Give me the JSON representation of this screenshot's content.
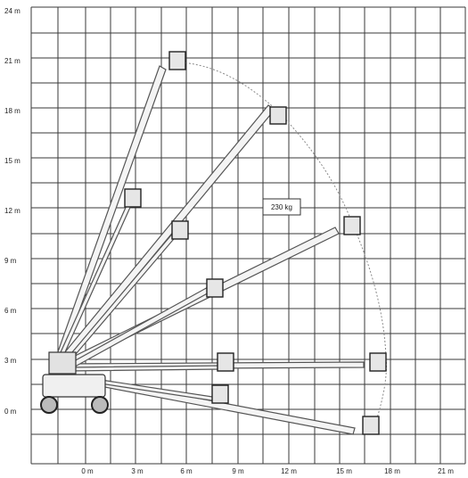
{
  "diagram": {
    "y_axis_labels": [
      "24 m",
      "21 m",
      "18 m",
      "15 m",
      "12 m",
      "9 m",
      "6 m",
      "3 m",
      "0 m"
    ],
    "x_axis_labels": [
      "0 m",
      "3 m",
      "6 m",
      "9 m",
      "12 m",
      "15 m",
      "18 m",
      "21 m"
    ],
    "load_label": "230 kg"
  }
}
